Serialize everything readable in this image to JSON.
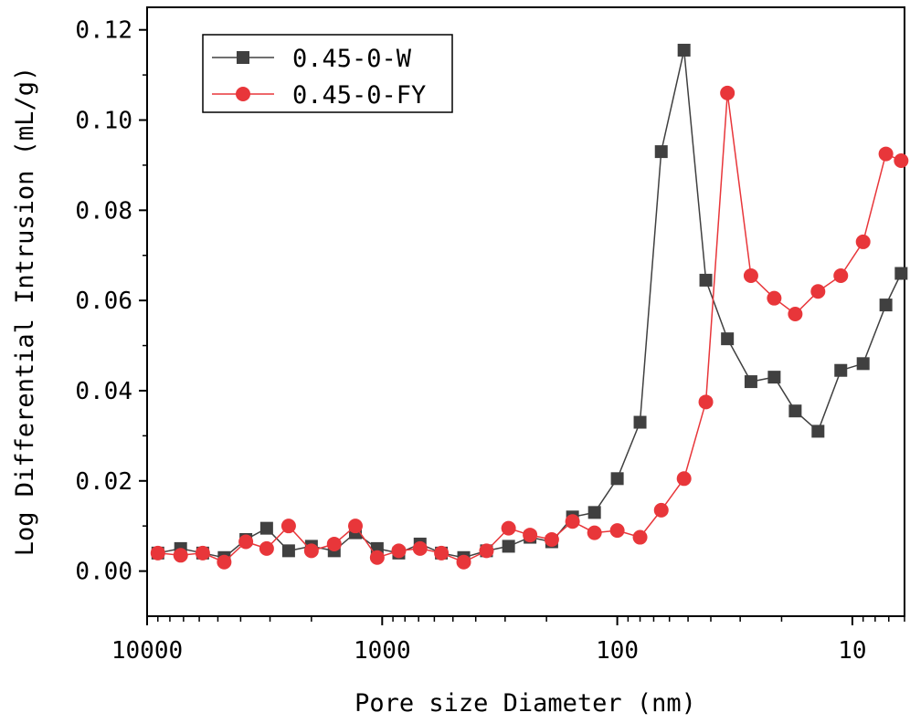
{
  "chart_data": {
    "type": "line",
    "title": "",
    "xlabel": "Pore size Diameter (nm)",
    "ylabel": "Log Differential Intrusion (mL/g)",
    "x_scale": "log",
    "x_reversed": true,
    "xlim": [
      10000,
      6
    ],
    "ylim": [
      -0.01,
      0.125
    ],
    "x_ticks": [
      {
        "value": 10000,
        "label": "10000"
      },
      {
        "value": 1000,
        "label": "1000"
      },
      {
        "value": 100,
        "label": "100"
      },
      {
        "value": 10,
        "label": "10"
      }
    ],
    "y_ticks": [
      {
        "value": 0.0,
        "label": "0.00"
      },
      {
        "value": 0.02,
        "label": "0.02"
      },
      {
        "value": 0.04,
        "label": "0.04"
      },
      {
        "value": 0.06,
        "label": "0.06"
      },
      {
        "value": 0.08,
        "label": "0.08"
      },
      {
        "value": 0.1,
        "label": "0.10"
      },
      {
        "value": 0.12,
        "label": "0.12"
      }
    ],
    "legend_position": "top-left",
    "series": [
      {
        "name": "0.45-0-W",
        "color": "#404040",
        "marker": "square",
        "x": [
          9000,
          7200,
          5800,
          4700,
          3800,
          3100,
          2500,
          2000,
          1600,
          1300,
          1050,
          850,
          690,
          560,
          450,
          360,
          290,
          235,
          190,
          155,
          125,
          100,
          80,
          65,
          52,
          42,
          34,
          27,
          21.5,
          17.5,
          14,
          11.2,
          9,
          7.2,
          6.2
        ],
        "y": [
          0.004,
          0.005,
          0.004,
          0.003,
          0.007,
          0.0095,
          0.0045,
          0.0055,
          0.0045,
          0.0085,
          0.005,
          0.004,
          0.006,
          0.004,
          0.003,
          0.0045,
          0.0055,
          0.0075,
          0.0065,
          0.012,
          0.013,
          0.0205,
          0.033,
          0.093,
          0.1155,
          0.0645,
          0.0515,
          0.042,
          0.043,
          0.0355,
          0.031,
          0.0445,
          0.046,
          0.059,
          0.066
        ]
      },
      {
        "name": "0.45-0-FY",
        "color": "#e8363a",
        "marker": "circle",
        "x": [
          9000,
          7200,
          5800,
          4700,
          3800,
          3100,
          2500,
          2000,
          1600,
          1300,
          1050,
          850,
          690,
          560,
          450,
          360,
          290,
          235,
          190,
          155,
          125,
          100,
          80,
          65,
          52,
          42,
          34,
          27,
          21.5,
          17.5,
          14,
          11.2,
          9,
          7.2,
          6.2
        ],
        "y": [
          0.004,
          0.0035,
          0.004,
          0.002,
          0.0065,
          0.005,
          0.01,
          0.0045,
          0.006,
          0.01,
          0.003,
          0.0045,
          0.005,
          0.004,
          0.002,
          0.0045,
          0.0095,
          0.008,
          0.007,
          0.011,
          0.0085,
          0.009,
          0.0075,
          0.0135,
          0.0205,
          0.0375,
          0.106,
          0.0655,
          0.0605,
          0.057,
          0.062,
          0.0655,
          0.073,
          0.0925,
          0.091
        ]
      }
    ]
  }
}
